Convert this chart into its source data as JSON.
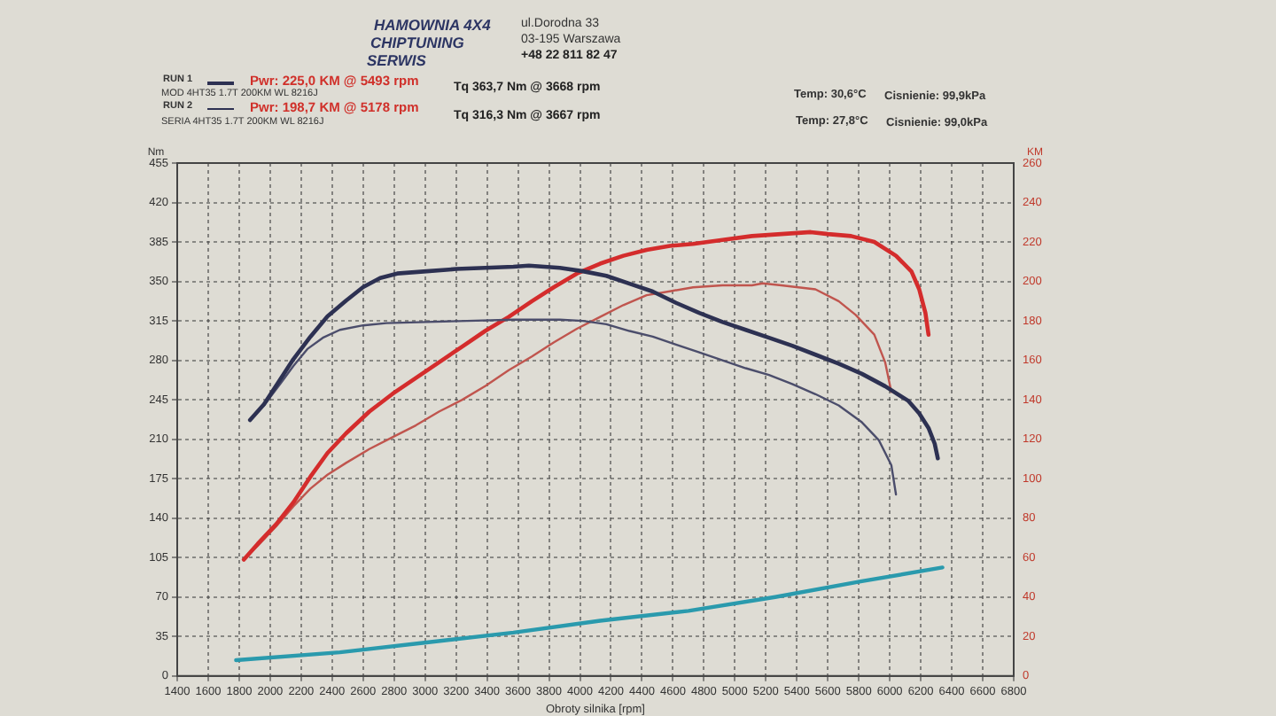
{
  "chart_data": {
    "type": "line",
    "xlabel": "Obroty silnika [rpm]",
    "ylabel": "Nm",
    "y2label": "KM",
    "annotations": [
      "HAMOWNIA 4X4",
      "CHIPTUNING",
      "SERWIS",
      "ul.Dorodna 33",
      "03-195 Warszawa",
      "+48 22 811 82 47",
      "RUN 1",
      "Pwr: 225,0 KM @ 5493 rpm",
      "MOD 4HT35 1.7T 200KM WL 8216J",
      "Tq 363,7 Nm @ 3668 rpm",
      "Temp: 30,6°C",
      "Cisnienie: 99,9kPa",
      "RUN 2",
      "Pwr: 198,7 KM @ 5178 rpm",
      "SERIA 4HT35 1.7T 200KM WL 8216J",
      "Tq 316,3 Nm @ 3667 rpm",
      "Temp: 27,8°C",
      "Cisnienie: 99,0kPa"
    ],
    "xlim": [
      1400,
      6800
    ],
    "xticks": [
      1400,
      1600,
      1800,
      2000,
      2200,
      2400,
      2600,
      2800,
      3000,
      3200,
      3400,
      3600,
      3800,
      4000,
      4200,
      4400,
      4600,
      4800,
      5000,
      5200,
      5400,
      5600,
      5800,
      6000,
      6200,
      6400,
      6600,
      6800
    ],
    "ylim": [
      0,
      455
    ],
    "yticks": [
      0,
      35,
      70,
      105,
      140,
      175,
      210,
      245,
      280,
      315,
      350,
      385,
      420,
      455
    ],
    "y2lim": [
      0,
      260
    ],
    "y2ticks": [
      0,
      20,
      40,
      60,
      80,
      100,
      120,
      140,
      160,
      180,
      200,
      220,
      240,
      260
    ],
    "grid": true,
    "marker": "none",
    "line_style": "solid",
    "series": [
      {
        "color": "#2d3152",
        "x": [
          1870,
          1960,
          2060,
          2150,
          2260,
          2370,
          2490,
          2600,
          2710,
          2820,
          3010,
          3200,
          3390,
          3570,
          3670,
          3870,
          4020,
          4170,
          4320,
          4470,
          4620,
          4770,
          4920,
          5070,
          5220,
          5370,
          5520,
          5670,
          5820,
          5970,
          6120,
          6190,
          6250,
          6290,
          6310
        ],
        "values": [
          227,
          241,
          262,
          281,
          301,
          319,
          333,
          345,
          353,
          357,
          359,
          361,
          362,
          363,
          364,
          362,
          359,
          355,
          348,
          341,
          331,
          322,
          314,
          307,
          300,
          293,
          285,
          277,
          268,
          257,
          244,
          233,
          220,
          206,
          193
        ]
      },
      {
        "color": "#4b4d6b",
        "x": [
          1870,
          1960,
          2070,
          2150,
          2240,
          2340,
          2450,
          2600,
          2750,
          3010,
          3270,
          3570,
          3870,
          4020,
          4170,
          4320,
          4470,
          4620,
          4770,
          4920,
          5070,
          5220,
          5370,
          5520,
          5670,
          5820,
          5930,
          6010,
          6040
        ],
        "values": [
          227,
          240,
          260,
          275,
          290,
          300,
          307,
          311,
          313,
          314,
          315,
          316,
          316,
          315,
          312,
          306,
          301,
          294,
          287,
          280,
          273,
          267,
          259,
          250,
          240,
          225,
          209,
          187,
          161
        ]
      },
      {
        "color": "#d42c2c",
        "axis": "y2",
        "x": [
          1830,
          1920,
          2040,
          2150,
          2260,
          2370,
          2490,
          2640,
          2790,
          2940,
          3090,
          3240,
          3390,
          3540,
          3690,
          3830,
          3980,
          4130,
          4280,
          4430,
          4580,
          4730,
          4920,
          5110,
          5300,
          5490,
          5600,
          5750,
          5900,
          6040,
          6140,
          6190,
          6230,
          6250
        ],
        "values": [
          59,
          67,
          77,
          88,
          101,
          113,
          123,
          134,
          143,
          151,
          159,
          167,
          175,
          182,
          190,
          197,
          204,
          209,
          213,
          216,
          218,
          219,
          221,
          223,
          224,
          225,
          224,
          223,
          220,
          213,
          205,
          196,
          184,
          173
        ]
      },
      {
        "color": "#c0554e",
        "axis": "y2",
        "x": [
          1830,
          1920,
          2040,
          2150,
          2260,
          2370,
          2490,
          2640,
          2790,
          2940,
          3090,
          3240,
          3390,
          3540,
          3690,
          3830,
          3980,
          4130,
          4280,
          4430,
          4580,
          4730,
          4920,
          5110,
          5180,
          5300,
          5410,
          5520,
          5670,
          5780,
          5900,
          5970,
          6010
        ],
        "values": [
          59,
          66,
          76,
          86,
          95,
          102,
          108,
          115,
          121,
          127,
          134,
          140,
          147,
          155,
          162,
          169,
          176,
          182,
          188,
          193,
          195,
          197,
          198,
          198,
          199,
          198,
          197,
          196,
          190,
          183,
          173,
          159,
          144
        ]
      },
      {
        "color": "#2a9aad",
        "axis": "y2",
        "x": [
          1780,
          2450,
          3010,
          3570,
          4130,
          4700,
          5260,
          5820,
          6340
        ],
        "values": [
          8,
          12,
          17,
          22,
          28,
          33,
          40,
          48,
          55
        ]
      }
    ]
  }
}
